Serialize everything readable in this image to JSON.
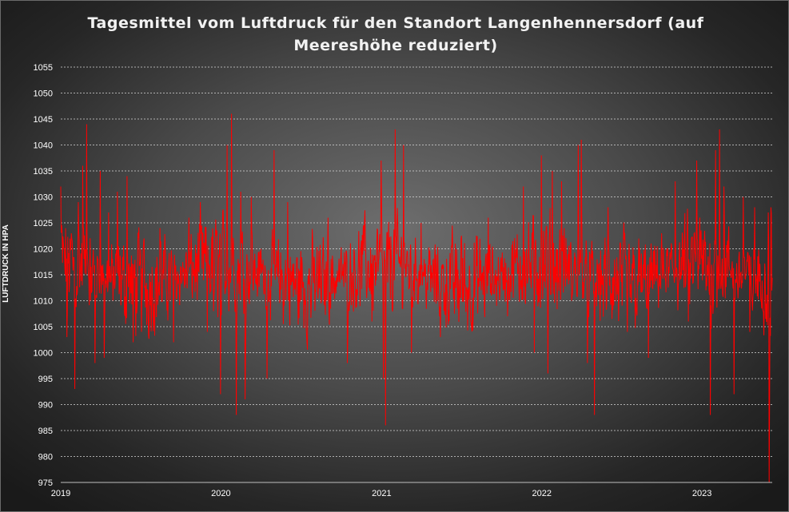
{
  "chart_data": {
    "type": "line",
    "title": "Tagesmittel vom Luftdruck für den Standort Langenhennersdorf (auf Meereshöhe reduziert)",
    "xlabel": "",
    "ylabel": "LUFTDRUCK IN HPA",
    "ylim": [
      975,
      1055
    ],
    "yticks": [
      975,
      980,
      985,
      990,
      995,
      1000,
      1005,
      1010,
      1015,
      1020,
      1025,
      1030,
      1035,
      1040,
      1045,
      1050,
      1055
    ],
    "xticks": [
      "2019",
      "2020",
      "2021",
      "2022",
      "2023"
    ],
    "xlim": [
      "2019-01-01",
      "2023-06-10"
    ],
    "grid": "horizontal dotted",
    "legend": "none",
    "series_color": "#ff0000",
    "series": [
      {
        "frequency": "daily",
        "anchor_points": [
          [
            "2019-01-01",
            1032
          ],
          [
            "2019-01-08",
            1020
          ],
          [
            "2019-01-15",
            1003
          ],
          [
            "2019-01-25",
            1023
          ],
          [
            "2019-02-02",
            993
          ],
          [
            "2019-02-10",
            1029
          ],
          [
            "2019-02-20",
            1036
          ],
          [
            "2019-03-01",
            1044
          ],
          [
            "2019-03-10",
            1010
          ],
          [
            "2019-03-20",
            998
          ],
          [
            "2019-04-01",
            1035
          ],
          [
            "2019-04-10",
            999
          ],
          [
            "2019-04-20",
            1027
          ],
          [
            "2019-05-10",
            1031
          ],
          [
            "2019-06-01",
            1034
          ],
          [
            "2019-06-15",
            1002
          ],
          [
            "2019-07-10",
            1022
          ],
          [
            "2019-08-15",
            1024
          ],
          [
            "2019-09-15",
            1002
          ],
          [
            "2019-10-20",
            1026
          ],
          [
            "2019-11-15",
            1029
          ],
          [
            "2019-12-01",
            1004
          ],
          [
            "2019-12-15",
            1008
          ],
          [
            "2019-12-31",
            992
          ],
          [
            "2020-01-15",
            1040
          ],
          [
            "2020-01-25",
            1046
          ],
          [
            "2020-02-05",
            988
          ],
          [
            "2020-02-15",
            1031
          ],
          [
            "2020-02-25",
            991
          ],
          [
            "2020-03-10",
            1030
          ],
          [
            "2020-04-01",
            1020
          ],
          [
            "2020-04-15",
            995
          ],
          [
            "2020-05-01",
            1039
          ],
          [
            "2020-06-01",
            1029
          ],
          [
            "2020-07-15",
            1002
          ],
          [
            "2020-09-01",
            1026
          ],
          [
            "2020-10-15",
            998
          ],
          [
            "2020-11-20",
            1024
          ],
          [
            "2020-12-10",
            1006
          ],
          [
            "2020-12-31",
            1037
          ],
          [
            "2021-01-05",
            995
          ],
          [
            "2021-01-10",
            986
          ],
          [
            "2021-02-01",
            1043
          ],
          [
            "2021-02-20",
            1040
          ],
          [
            "2021-03-10",
            1000
          ],
          [
            "2021-04-01",
            1025
          ],
          [
            "2021-05-15",
            1003
          ],
          [
            "2021-07-01",
            1022
          ],
          [
            "2021-09-01",
            1026
          ],
          [
            "2021-10-15",
            1007
          ],
          [
            "2021-11-20",
            1032
          ],
          [
            "2021-12-15",
            1000
          ],
          [
            "2021-12-31",
            1038
          ],
          [
            "2022-01-15",
            996
          ],
          [
            "2022-01-25",
            1035
          ],
          [
            "2022-02-15",
            1033
          ],
          [
            "2022-03-10",
            1010
          ],
          [
            "2022-03-25",
            1040
          ],
          [
            "2022-04-01",
            1041
          ],
          [
            "2022-04-15",
            998
          ],
          [
            "2022-05-01",
            988
          ],
          [
            "2022-06-01",
            1028
          ],
          [
            "2022-07-15",
            1004
          ],
          [
            "2022-09-01",
            999
          ],
          [
            "2022-10-01",
            1023
          ],
          [
            "2022-11-01",
            1033
          ],
          [
            "2022-12-01",
            1006
          ],
          [
            "2022-12-20",
            1037
          ],
          [
            "2023-01-10",
            1012
          ],
          [
            "2023-01-20",
            988
          ],
          [
            "2023-02-01",
            1039
          ],
          [
            "2023-02-10",
            1043
          ],
          [
            "2023-02-20",
            1032
          ],
          [
            "2023-03-05",
            1016
          ],
          [
            "2023-03-15",
            992
          ],
          [
            "2023-04-05",
            1030
          ],
          [
            "2023-04-20",
            1004
          ],
          [
            "2023-05-01",
            1028
          ],
          [
            "2023-05-20",
            1008
          ],
          [
            "2023-06-01",
            1027
          ],
          [
            "2023-06-03",
            975
          ],
          [
            "2023-06-07",
            1028
          ]
        ]
      }
    ]
  }
}
